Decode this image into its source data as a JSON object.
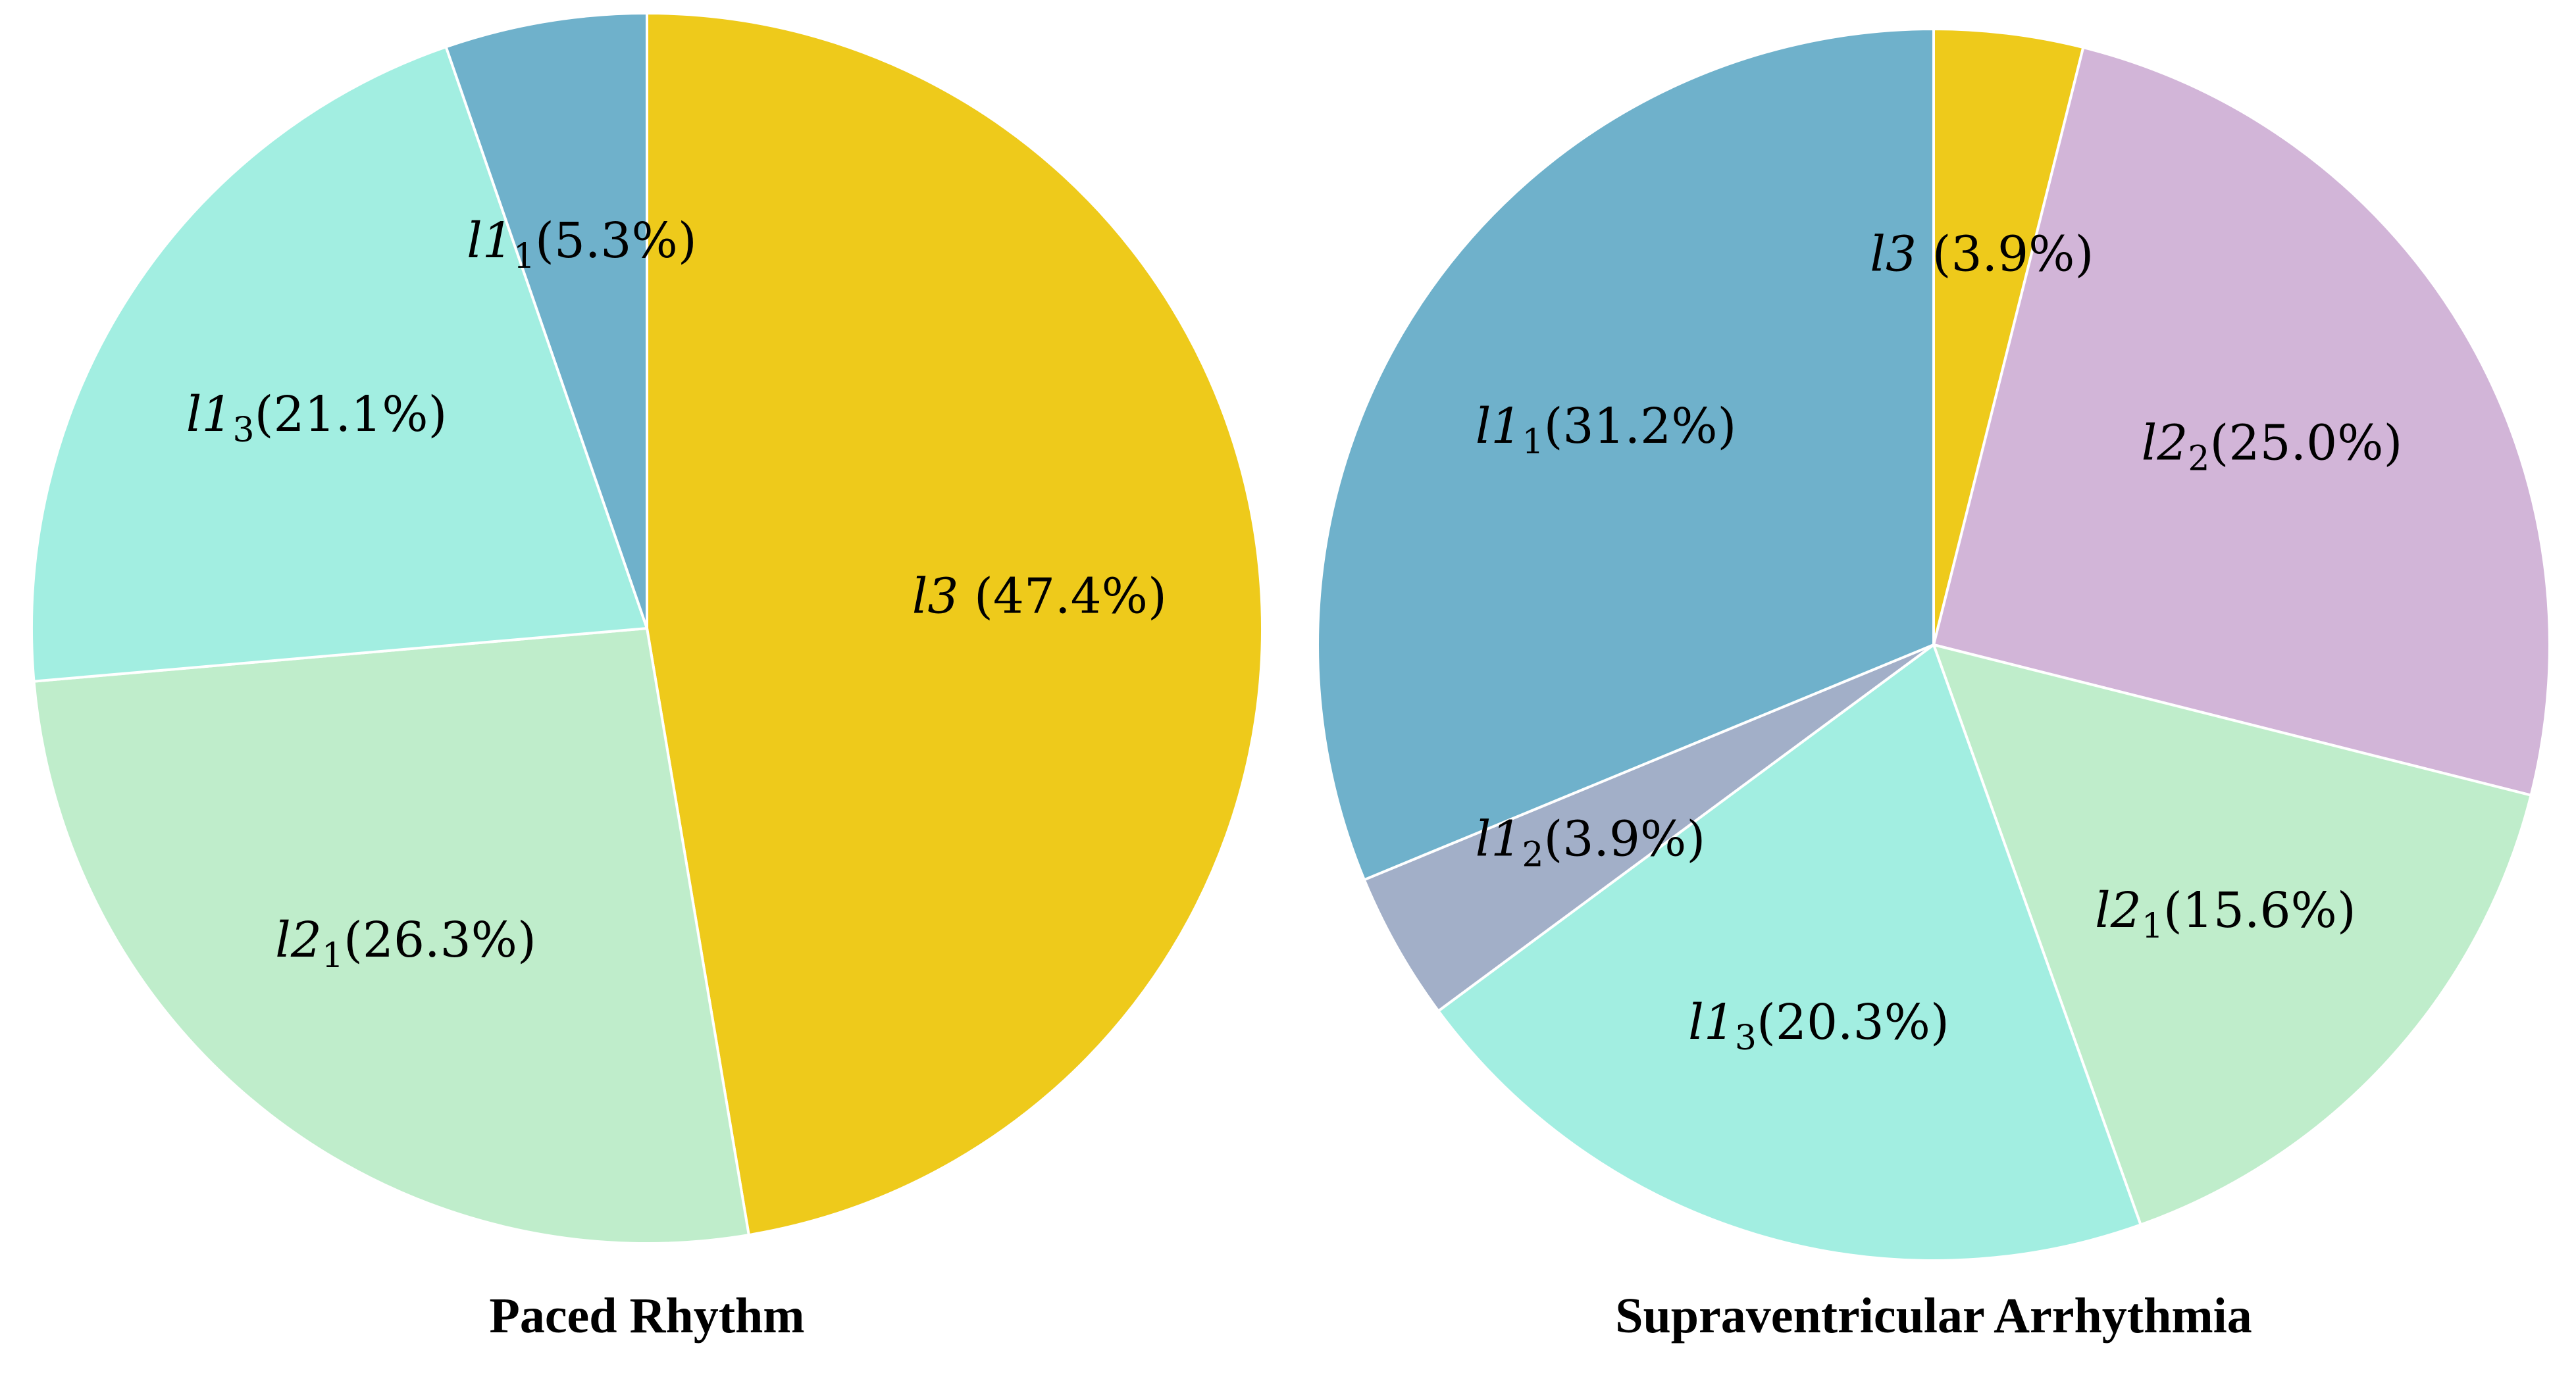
{
  "chart_data": [
    {
      "type": "pie",
      "title": "Paced Rhythm",
      "start_angle_deg": 90,
      "direction": "clockwise",
      "slices": [
        {
          "var": "l",
          "num": "3",
          "sub": "",
          "space": true,
          "pct": "47.4%",
          "value": 47.4,
          "color": "#EECA1B"
        },
        {
          "var": "l",
          "num": "2",
          "sub": "1",
          "space": false,
          "pct": "26.3%",
          "value": 26.3,
          "color": "#BFEDCB"
        },
        {
          "var": "l",
          "num": "1",
          "sub": "3",
          "space": false,
          "pct": "21.1%",
          "value": 21.1,
          "color": "#A2EEE1"
        },
        {
          "var": "l",
          "num": "1",
          "sub": "1",
          "space": false,
          "pct": "5.3%",
          "value": 5.3,
          "color": "#6FB1CB"
        }
      ]
    },
    {
      "type": "pie",
      "title": "Supraventricular Arrhythmia",
      "start_angle_deg": 90,
      "direction": "clockwise",
      "slices": [
        {
          "var": "l",
          "num": "3",
          "sub": "",
          "space": true,
          "pct": "3.9%",
          "value": 3.9,
          "color": "#EECA1B"
        },
        {
          "var": "l",
          "num": "2",
          "sub": "2",
          "space": false,
          "pct": "25.0%",
          "value": 25.0,
          "color": "#D2B5D8"
        },
        {
          "var": "l",
          "num": "2",
          "sub": "1",
          "space": false,
          "pct": "15.6%",
          "value": 15.6,
          "color": "#BFEDCB"
        },
        {
          "var": "l",
          "num": "1",
          "sub": "3",
          "space": false,
          "pct": "20.3%",
          "value": 20.3,
          "color": "#A2EEE1"
        },
        {
          "var": "l",
          "num": "1",
          "sub": "2",
          "space": false,
          "pct": "3.9%",
          "value": 3.9,
          "color": "#A2AFC8"
        },
        {
          "var": "l",
          "num": "1",
          "sub": "1",
          "space": false,
          "pct": "31.2%",
          "value": 31.2,
          "color": "#6FB1CB"
        }
      ]
    }
  ]
}
